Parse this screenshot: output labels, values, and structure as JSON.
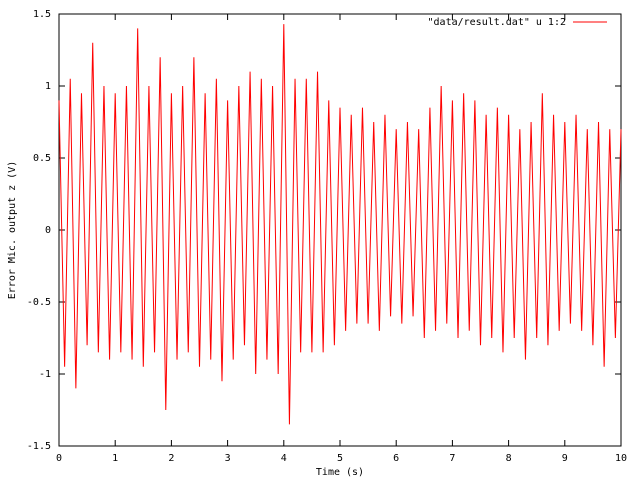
{
  "chart_data": {
    "type": "line",
    "xlabel": "Time (s)",
    "ylabel": "Error Mic. output z (V)",
    "x": [
      0,
      0.1,
      0.2,
      0.3,
      0.4,
      0.5,
      0.6,
      0.7,
      0.8,
      0.9,
      1,
      1.1,
      1.2,
      1.3,
      1.4,
      1.5,
      1.6,
      1.7,
      1.8,
      1.9,
      2,
      2.1,
      2.2,
      2.3,
      2.4,
      2.5,
      2.6,
      2.7,
      2.8,
      2.9,
      3,
      3.1,
      3.2,
      3.3,
      3.4,
      3.5,
      3.6,
      3.7,
      3.8,
      3.9,
      4,
      4.1,
      4.2,
      4.3,
      4.4,
      4.5,
      4.6,
      4.7,
      4.8,
      4.9,
      5,
      5.1,
      5.2,
      5.3,
      5.4,
      5.5,
      5.6,
      5.7,
      5.8,
      5.9,
      6,
      6.1,
      6.2,
      6.3,
      6.4,
      6.5,
      6.6,
      6.7,
      6.8,
      6.9,
      7,
      7.1,
      7.2,
      7.3,
      7.4,
      7.5,
      7.6,
      7.7,
      7.8,
      7.9,
      8,
      8.1,
      8.2,
      8.3,
      8.4,
      8.5,
      8.6,
      8.7,
      8.8,
      8.9,
      9,
      9.1,
      9.2,
      9.3,
      9.4,
      9.5,
      9.6,
      9.7,
      9.8,
      9.9,
      10
    ],
    "series": [
      {
        "name": "\"data/result.dat\" u 1:2",
        "color": "#ff0000",
        "values": [
          0.9,
          -0.95,
          1.05,
          -1.1,
          0.95,
          -0.8,
          1.3,
          -0.85,
          1.0,
          -0.9,
          0.95,
          -0.85,
          1.0,
          -0.9,
          1.4,
          -0.95,
          1.0,
          -0.85,
          1.2,
          -1.25,
          0.95,
          -0.9,
          1.0,
          -0.85,
          1.2,
          -0.95,
          0.95,
          -0.9,
          1.05,
          -1.05,
          0.9,
          -0.9,
          1.0,
          -0.8,
          1.1,
          -1.0,
          1.05,
          -0.9,
          1.0,
          -1.0,
          1.43,
          -1.35,
          1.05,
          -0.85,
          1.05,
          -0.85,
          1.1,
          -0.85,
          0.9,
          -0.8,
          0.85,
          -0.7,
          0.8,
          -0.65,
          0.85,
          -0.65,
          0.75,
          -0.7,
          0.8,
          -0.6,
          0.7,
          -0.65,
          0.75,
          -0.6,
          0.7,
          -0.75,
          0.85,
          -0.7,
          1.0,
          -0.65,
          0.9,
          -0.75,
          0.95,
          -0.7,
          0.9,
          -0.8,
          0.8,
          -0.75,
          0.85,
          -0.85,
          0.8,
          -0.75,
          0.7,
          -0.9,
          0.75,
          -0.75,
          0.95,
          -0.8,
          0.8,
          -0.7,
          0.75,
          -0.65,
          0.8,
          -0.7,
          0.7,
          -0.8,
          0.75,
          -0.95,
          0.7,
          -0.75,
          0.7
        ]
      }
    ],
    "xlim": [
      0,
      10
    ],
    "xticks": [
      0,
      1,
      2,
      3,
      4,
      5,
      6,
      7,
      8,
      9,
      10
    ],
    "ylim": [
      -1.5,
      1.5
    ],
    "yticks": [
      -1.5,
      -1,
      -0.5,
      0,
      0.5,
      1,
      1.5
    ],
    "grid": false,
    "legend": "top-right"
  }
}
